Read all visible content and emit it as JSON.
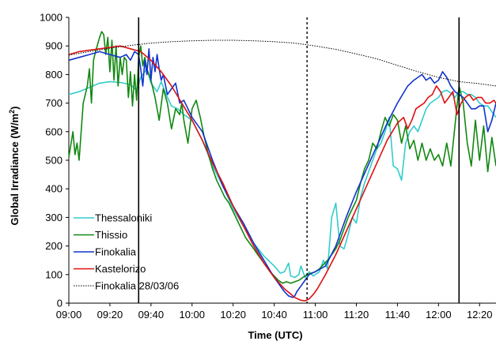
{
  "chart_data": {
    "type": "line",
    "xlabel": "Time (UTC)",
    "ylabel_main": "Global Irradiance (W/m",
    "ylabel_sup": "2",
    "ylabel_end": ")",
    "ylim": [
      0,
      1000
    ],
    "xlim_minutes": [
      540,
      748
    ],
    "yticks": [
      0,
      100,
      200,
      300,
      400,
      500,
      600,
      700,
      800,
      900,
      1000
    ],
    "xticks": [
      {
        "t": 540,
        "label": "09:00"
      },
      {
        "t": 560,
        "label": "09:20"
      },
      {
        "t": 580,
        "label": "09:40"
      },
      {
        "t": 600,
        "label": "10:00"
      },
      {
        "t": 620,
        "label": "10:20"
      },
      {
        "t": 640,
        "label": "10:40"
      },
      {
        "t": 660,
        "label": "11:00"
      },
      {
        "t": 680,
        "label": "11:20"
      },
      {
        "t": 700,
        "label": "11:40"
      },
      {
        "t": 720,
        "label": "12:00"
      },
      {
        "t": 740,
        "label": "12:20"
      }
    ],
    "vertical_lines": [
      {
        "t": 574,
        "style": "solid"
      },
      {
        "t": 656,
        "style": "dotted"
      },
      {
        "t": 730,
        "style": "solid"
      }
    ],
    "legend_position": "bottom-left",
    "series": [
      {
        "name": "Thessaloniki",
        "color": "#33cccc",
        "x": [
          540,
          545,
          550,
          555,
          560,
          565,
          570,
          573,
          575,
          578,
          580,
          583,
          585,
          588,
          590,
          593,
          596,
          600,
          605,
          610,
          615,
          620,
          625,
          630,
          635,
          640,
          643,
          645,
          647,
          648,
          650,
          652,
          653,
          655,
          657,
          659,
          660,
          662,
          664,
          666,
          668,
          670,
          672,
          674,
          676,
          678,
          680,
          682,
          684,
          686,
          688,
          690,
          692,
          694,
          696,
          698,
          700,
          702,
          704,
          706,
          708,
          710,
          712,
          714,
          716,
          718,
          720,
          722,
          724,
          726,
          728,
          730,
          732,
          734,
          736,
          738,
          740,
          742,
          744,
          746,
          748
        ],
        "y": [
          730,
          740,
          755,
          770,
          775,
          772,
          765,
          745,
          790,
          820,
          770,
          740,
          775,
          720,
          690,
          680,
          660,
          640,
          570,
          480,
          410,
          330,
          270,
          210,
          165,
          130,
          105,
          110,
          140,
          95,
          90,
          100,
          130,
          90,
          110,
          95,
          100,
          110,
          150,
          120,
          300,
          350,
          200,
          190,
          240,
          300,
          280,
          370,
          420,
          460,
          500,
          540,
          560,
          600,
          650,
          480,
          470,
          430,
          560,
          600,
          620,
          600,
          640,
          680,
          700,
          710,
          720,
          740,
          745,
          735,
          720,
          740,
          740,
          730,
          730,
          720,
          700,
          690,
          690,
          670,
          650
        ]
      },
      {
        "name": "Thissio",
        "color": "#118811",
        "x": [
          540,
          542,
          543,
          544,
          545,
          547,
          549,
          550,
          551,
          552,
          553,
          555,
          556,
          557,
          558,
          559,
          560,
          561,
          562,
          563,
          564,
          565,
          566,
          567,
          568,
          569,
          570,
          571,
          572,
          573,
          574,
          575,
          576,
          577,
          578,
          579,
          580,
          582,
          584,
          586,
          588,
          590,
          592,
          594,
          595,
          596,
          598,
          600,
          602,
          604,
          606,
          608,
          610,
          612,
          614,
          616,
          618,
          620,
          622,
          624,
          626,
          628,
          630,
          632,
          634,
          636,
          638,
          640,
          642,
          644,
          646,
          648,
          650,
          652,
          654,
          656,
          658,
          660,
          662,
          664,
          666,
          668,
          670,
          672,
          674,
          676,
          678,
          680,
          682,
          684,
          686,
          688,
          690,
          692,
          694,
          696,
          698,
          700,
          702,
          704,
          706,
          708,
          710,
          712,
          714,
          716,
          718,
          720,
          722,
          724,
          726,
          728,
          730,
          732,
          734,
          736,
          738,
          740,
          742,
          744,
          746,
          748
        ],
        "y": [
          510,
          600,
          520,
          560,
          500,
          700,
          760,
          820,
          700,
          850,
          880,
          930,
          950,
          940,
          870,
          930,
          810,
          920,
          780,
          900,
          760,
          860,
          800,
          860,
          850,
          720,
          810,
          690,
          800,
          710,
          860,
          900,
          830,
          860,
          820,
          800,
          780,
          720,
          640,
          750,
          700,
          610,
          680,
          660,
          700,
          640,
          560,
          680,
          710,
          650,
          580,
          520,
          470,
          430,
          400,
          370,
          350,
          320,
          290,
          260,
          230,
          210,
          190,
          170,
          150,
          130,
          110,
          95,
          80,
          70,
          75,
          70,
          75,
          80,
          90,
          100,
          105,
          110,
          120,
          135,
          150,
          170,
          190,
          220,
          260,
          300,
          330,
          360,
          420,
          470,
          500,
          560,
          540,
          600,
          650,
          620,
          660,
          640,
          560,
          620,
          540,
          570,
          500,
          560,
          500,
          540,
          500,
          520,
          480,
          560,
          480,
          620,
          760,
          700,
          560,
          480,
          640,
          500,
          620,
          460,
          580,
          480
        ]
      },
      {
        "name": "Finokalia",
        "color": "#1133cc",
        "x": [
          540,
          545,
          550,
          555,
          560,
          565,
          568,
          570,
          572,
          574,
          575,
          576,
          577,
          578,
          579,
          580,
          581,
          582,
          583,
          584,
          585,
          586,
          588,
          590,
          592,
          594,
          596,
          598,
          600,
          605,
          610,
          615,
          620,
          625,
          630,
          635,
          640,
          643,
          645,
          647,
          649,
          650,
          651,
          653,
          655,
          657,
          660,
          665,
          670,
          675,
          680,
          685,
          690,
          695,
          700,
          705,
          708,
          710,
          712,
          714,
          716,
          718,
          720,
          722,
          724,
          726,
          728,
          730,
          732,
          734,
          736,
          738,
          740,
          742,
          744,
          746,
          748
        ],
        "y": [
          850,
          860,
          870,
          880,
          870,
          860,
          870,
          850,
          880,
          870,
          820,
          760,
          850,
          800,
          890,
          780,
          860,
          810,
          870,
          820,
          780,
          800,
          730,
          750,
          770,
          700,
          710,
          680,
          650,
          600,
          500,
          410,
          340,
          280,
          210,
          150,
          90,
          60,
          40,
          25,
          20,
          25,
          40,
          60,
          80,
          100,
          110,
          130,
          200,
          300,
          390,
          470,
          550,
          630,
          700,
          760,
          780,
          790,
          800,
          780,
          790,
          770,
          780,
          810,
          790,
          760,
          740,
          730,
          720,
          700,
          680,
          680,
          690,
          690,
          600,
          640,
          700
        ]
      },
      {
        "name": "Kastelorizo",
        "color": "#dd1111",
        "x": [
          540,
          545,
          550,
          555,
          560,
          565,
          570,
          575,
          580,
          585,
          590,
          595,
          600,
          605,
          610,
          615,
          620,
          625,
          630,
          635,
          640,
          645,
          650,
          653,
          655,
          657,
          659,
          661,
          665,
          670,
          675,
          680,
          685,
          690,
          695,
          700,
          703,
          705,
          707,
          709,
          711,
          713,
          715,
          717,
          719,
          721,
          723,
          725,
          727,
          729,
          731,
          733,
          735,
          737,
          739,
          741,
          743,
          745,
          747,
          748
        ],
        "y": [
          870,
          880,
          885,
          890,
          895,
          900,
          890,
          880,
          850,
          810,
          760,
          700,
          640,
          570,
          490,
          420,
          340,
          270,
          200,
          140,
          90,
          50,
          20,
          10,
          8,
          15,
          30,
          50,
          100,
          170,
          250,
          330,
          410,
          490,
          570,
          630,
          650,
          610,
          640,
          680,
          690,
          700,
          720,
          730,
          760,
          740,
          700,
          720,
          740,
          660,
          700,
          720,
          730,
          710,
          720,
          720,
          700,
          700,
          710,
          700
        ]
      },
      {
        "name": "Finokalia 28/03/06",
        "color": "#000000",
        "dashed": true,
        "x": [
          540,
          550,
          560,
          570,
          580,
          590,
          600,
          610,
          620,
          630,
          640,
          650,
          660,
          670,
          680,
          690,
          700,
          710,
          720,
          730,
          740,
          748
        ],
        "y": [
          868,
          880,
          892,
          902,
          910,
          915,
          918,
          920,
          920,
          918,
          915,
          910,
          900,
          888,
          872,
          855,
          832,
          810,
          790,
          775,
          768,
          760
        ]
      }
    ]
  }
}
